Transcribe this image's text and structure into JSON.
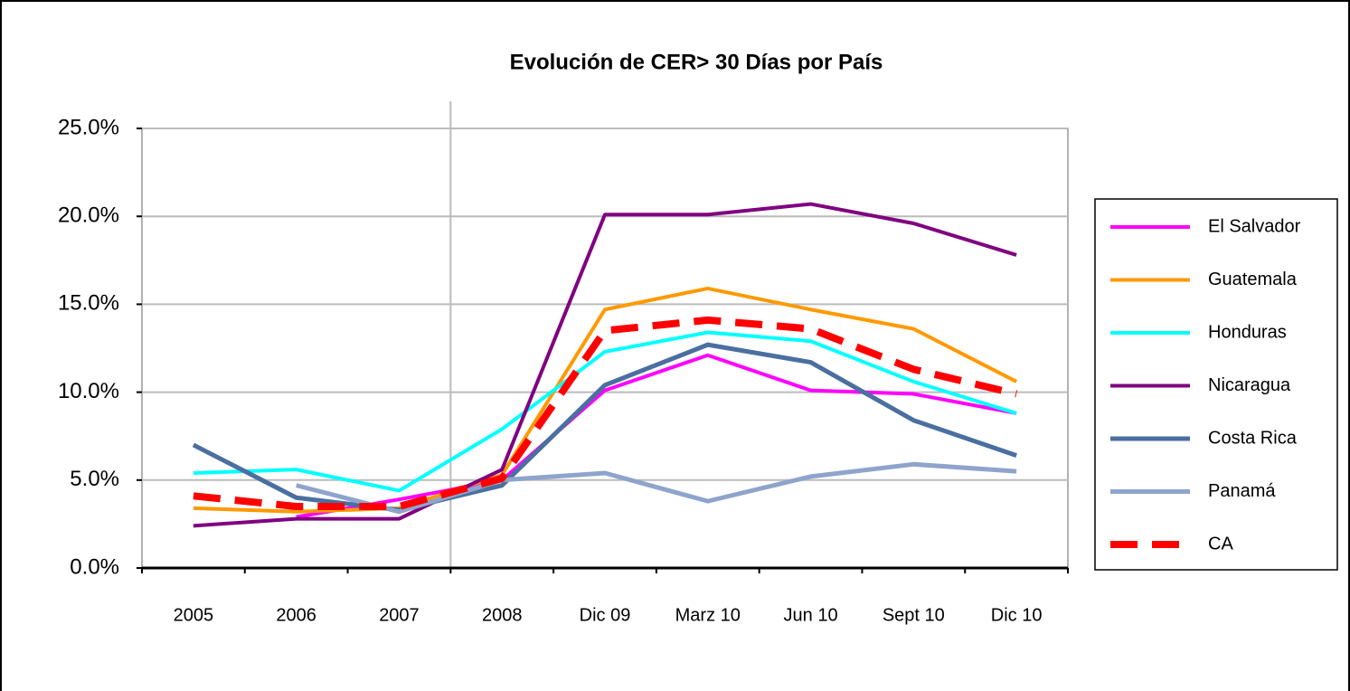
{
  "chart_data": {
    "type": "line",
    "title": "Evolución de CER> 30 Días por País",
    "categories": [
      "2005",
      "2006",
      "2007",
      "2008",
      "Dic 09",
      "Marz 10",
      "Jun 10",
      "Sept 10",
      "Dic 10"
    ],
    "ylim": [
      0,
      25
    ],
    "yticks": [
      {
        "value": 0,
        "label": "0.0%"
      },
      {
        "value": 5,
        "label": "5.0%"
      },
      {
        "value": 10,
        "label": "10.0%"
      },
      {
        "value": 15,
        "label": "15.0%"
      },
      {
        "value": 20,
        "label": "20.0%"
      },
      {
        "value": 25,
        "label": "25.0%"
      }
    ],
    "grid": true,
    "legend": "right",
    "series": [
      {
        "name": "El Salvador",
        "color": "#ff00ff",
        "values": [
          null,
          2.9,
          3.9,
          5.0,
          10.1,
          12.1,
          10.1,
          9.9,
          8.8
        ]
      },
      {
        "name": "Guatemala",
        "color": "#ff9900",
        "values": [
          3.4,
          3.2,
          3.4,
          5.3,
          14.7,
          15.9,
          14.7,
          13.6,
          10.6
        ]
      },
      {
        "name": "Honduras",
        "color": "#00ffff",
        "values": [
          5.4,
          5.6,
          4.4,
          7.9,
          12.3,
          13.4,
          12.9,
          10.6,
          8.8
        ]
      },
      {
        "name": "Nicaragua",
        "color": "#800080",
        "values": [
          2.4,
          2.8,
          2.8,
          5.6,
          20.1,
          20.1,
          20.7,
          19.6,
          17.8
        ]
      },
      {
        "name": "Costa Rica",
        "color": "#4a6fa0",
        "values": [
          7.0,
          4.0,
          3.3,
          4.7,
          10.4,
          12.7,
          11.7,
          8.4,
          6.4
        ]
      },
      {
        "name": "Panamá",
        "color": "#8ea4cc",
        "values": [
          null,
          4.7,
          3.2,
          5.0,
          5.4,
          3.8,
          5.2,
          5.9,
          5.5
        ]
      },
      {
        "name": "CA",
        "color": "#ff0000",
        "values": [
          4.1,
          3.5,
          3.5,
          5.1,
          13.5,
          14.1,
          13.6,
          11.3,
          9.9
        ]
      }
    ]
  }
}
